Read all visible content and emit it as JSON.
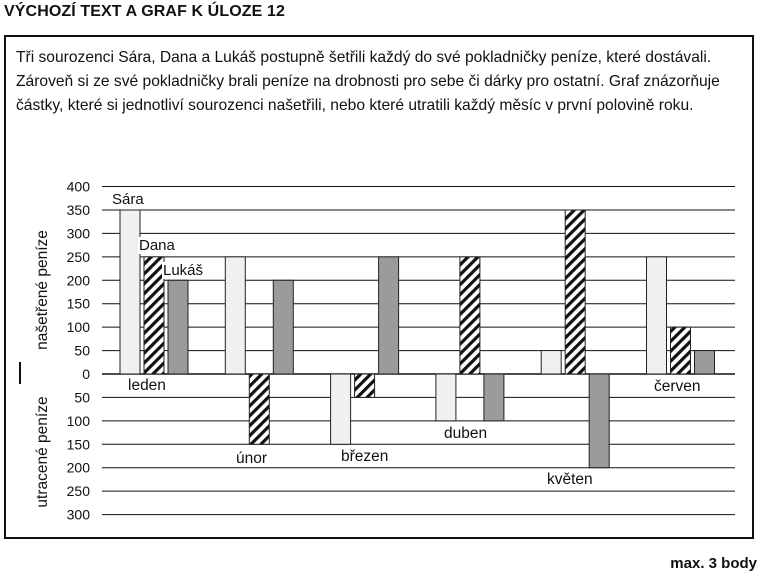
{
  "heading": "VÝCHOZÍ TEXT A GRAF K ÚLOZE 12",
  "task_text": "Tři sourozenci Sára, Dana a Lukáš postupně šetřili každý do své pokladničky peníze, které dostávali. Zároveň si ze své pokladničky brali peníze na drobnosti pro sebe či dárky pro ostatní. Graf znázorňuje částky, které si jednotliví sourozenci našetřili, nebo které utratili každý měsíc v první polovině roku.",
  "footer": "max. 3 body",
  "chart_data": {
    "type": "bar",
    "title": "",
    "ylabel_positive": "našetřené peníze",
    "ylabel_negative": "utracené peníze",
    "ylim": [
      -300,
      400
    ],
    "grid": true,
    "yticks": [
      {
        "value": 400,
        "label": "400"
      },
      {
        "value": 350,
        "label": "350"
      },
      {
        "value": 300,
        "label": "300"
      },
      {
        "value": 250,
        "label": "250"
      },
      {
        "value": 200,
        "label": "200"
      },
      {
        "value": 150,
        "label": "150"
      },
      {
        "value": 100,
        "label": "100"
      },
      {
        "value": 50,
        "label": "50"
      },
      {
        "value": 0,
        "label": "0"
      },
      {
        "value": -50,
        "label": "50"
      },
      {
        "value": -100,
        "label": "100"
      },
      {
        "value": -150,
        "label": "150"
      },
      {
        "value": -200,
        "label": "200"
      },
      {
        "value": -250,
        "label": "250"
      },
      {
        "value": -300,
        "label": "300"
      }
    ],
    "categories": [
      "leden",
      "únor",
      "březen",
      "duben",
      "květen",
      "červen"
    ],
    "series": [
      {
        "name": "Sára",
        "fill": "#f0f0f0",
        "pattern": "solid",
        "values": [
          350,
          250,
          -150,
          -100,
          50,
          250
        ]
      },
      {
        "name": "Dana",
        "fill": "#ffffff",
        "pattern": "hatch",
        "values": [
          250,
          -150,
          -50,
          250,
          350,
          100
        ]
      },
      {
        "name": "Lukáš",
        "fill": "#9b9b9b",
        "pattern": "solid",
        "values": [
          200,
          200,
          250,
          -100,
          -200,
          50
        ]
      }
    ]
  }
}
